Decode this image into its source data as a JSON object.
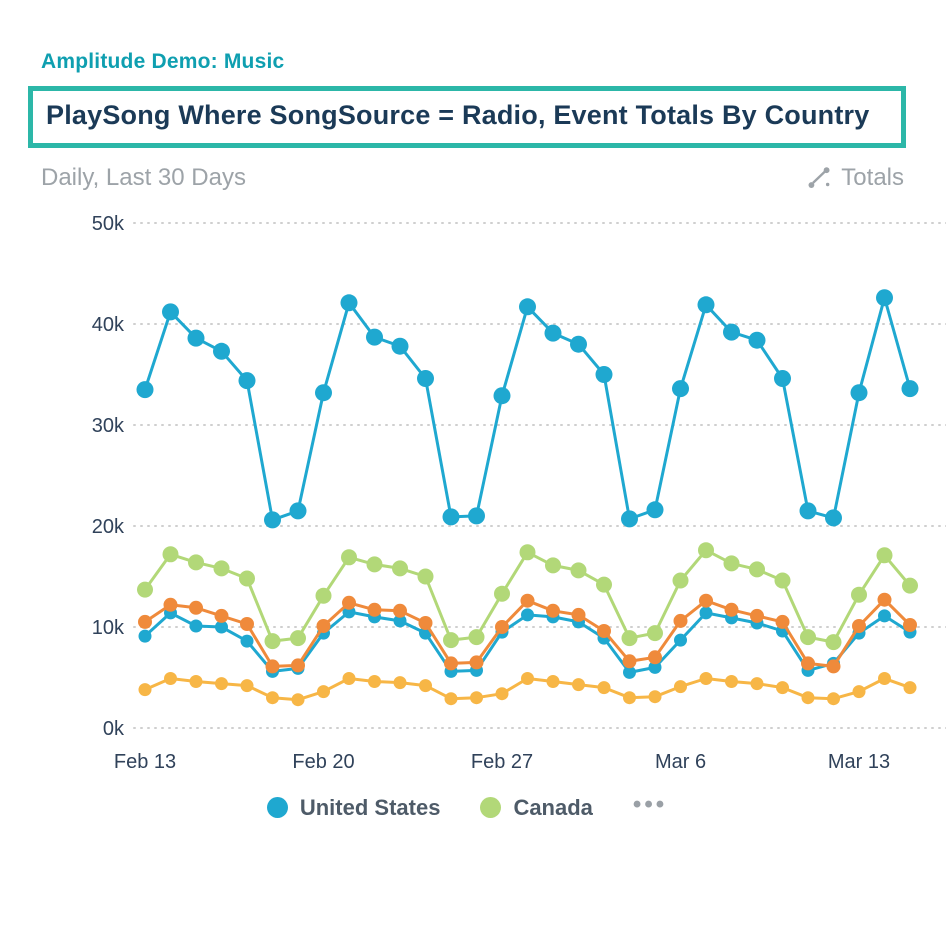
{
  "header": {
    "breadcrumb": "Amplitude Demo: Music",
    "title": "PlaySong Where SongSource = Radio, Event Totals By Country",
    "subtitle": "Daily, Last 30 Days",
    "metric_label": "Totals"
  },
  "legend": {
    "items": [
      {
        "label": "United States",
        "color": "#1fa8d0"
      },
      {
        "label": "Canada",
        "color": "#b2d878"
      }
    ],
    "more_label": "•••"
  },
  "colors": {
    "accent_teal_border": "#2cb7a8",
    "breadcrumb_teal": "#0f9fb0",
    "title_navy": "#1b3a57",
    "muted_gray": "#9da3a8",
    "axis_text": "#30425a",
    "gridline": "#cfcfcf"
  },
  "chart_data": {
    "type": "line",
    "title": "PlaySong Where SongSource = Radio, Event Totals By Country",
    "subtitle": "Daily, Last 30 Days",
    "metric": "Totals",
    "values_unit": "thousands of events",
    "ylim": [
      0,
      50
    ],
    "y_ticks": [
      "50k",
      "40k",
      "30k",
      "20k",
      "10k",
      "0k"
    ],
    "x_labels": [
      "Feb 13",
      "Feb 20",
      "Feb 27",
      "Mar 6",
      "Mar 13"
    ],
    "x_label_positions": [
      0,
      7,
      14,
      21,
      28
    ],
    "grid": "horizontal-dotted",
    "legend_position": "bottom-center",
    "series": [
      {
        "id": "united-states",
        "name": "United States",
        "color": "#1fa8d0",
        "values": [
          33.5,
          41.2,
          38.6,
          37.3,
          34.4,
          20.6,
          21.5,
          33.2,
          42.1,
          38.7,
          37.8,
          34.6,
          20.9,
          21.0,
          32.9,
          41.7,
          39.1,
          38.0,
          35.0,
          20.7,
          21.6,
          33.6,
          41.9,
          39.2,
          38.4,
          34.6,
          21.5,
          20.8,
          33.2,
          42.6,
          33.6
        ]
      },
      {
        "id": "canada",
        "name": "Canada",
        "color": "#b2d878",
        "values": [
          13.7,
          17.2,
          16.4,
          15.8,
          14.8,
          8.6,
          8.9,
          13.1,
          16.9,
          16.2,
          15.8,
          15.0,
          8.7,
          9.0,
          13.3,
          17.4,
          16.1,
          15.6,
          14.2,
          8.9,
          9.4,
          14.6,
          17.6,
          16.3,
          15.7,
          14.6,
          9.0,
          8.5,
          13.2,
          17.1,
          14.1
        ]
      },
      {
        "id": "unlabeled-1",
        "name": "",
        "color": "#ef8a3b",
        "values": [
          10.5,
          12.2,
          11.9,
          11.1,
          10.3,
          6.1,
          6.2,
          10.1,
          12.4,
          11.7,
          11.6,
          10.4,
          6.4,
          6.5,
          10.0,
          12.6,
          11.6,
          11.2,
          9.6,
          6.6,
          7.0,
          10.6,
          12.6,
          11.7,
          11.1,
          10.5,
          6.4,
          6.1,
          10.1,
          12.7,
          10.2
        ]
      },
      {
        "id": "unlabeled-2",
        "name": "",
        "color": "#1fa8d0",
        "values": [
          9.1,
          11.4,
          10.1,
          10.0,
          8.6,
          5.6,
          5.9,
          9.4,
          11.5,
          11.0,
          10.6,
          9.4,
          5.6,
          5.7,
          9.5,
          11.2,
          11.0,
          10.5,
          8.9,
          5.5,
          6.0,
          8.7,
          11.4,
          10.9,
          10.4,
          9.6,
          5.7,
          6.4,
          9.4,
          11.1,
          9.5
        ]
      },
      {
        "id": "unlabeled-3",
        "name": "",
        "color": "#f7b646",
        "values": [
          3.8,
          4.9,
          4.6,
          4.4,
          4.2,
          3.0,
          2.8,
          3.6,
          4.9,
          4.6,
          4.5,
          4.2,
          2.9,
          3.0,
          3.4,
          4.9,
          4.6,
          4.3,
          4.0,
          3.0,
          3.1,
          4.1,
          4.9,
          4.6,
          4.4,
          4.0,
          3.0,
          2.9,
          3.6,
          4.9,
          4.0
        ]
      }
    ]
  }
}
